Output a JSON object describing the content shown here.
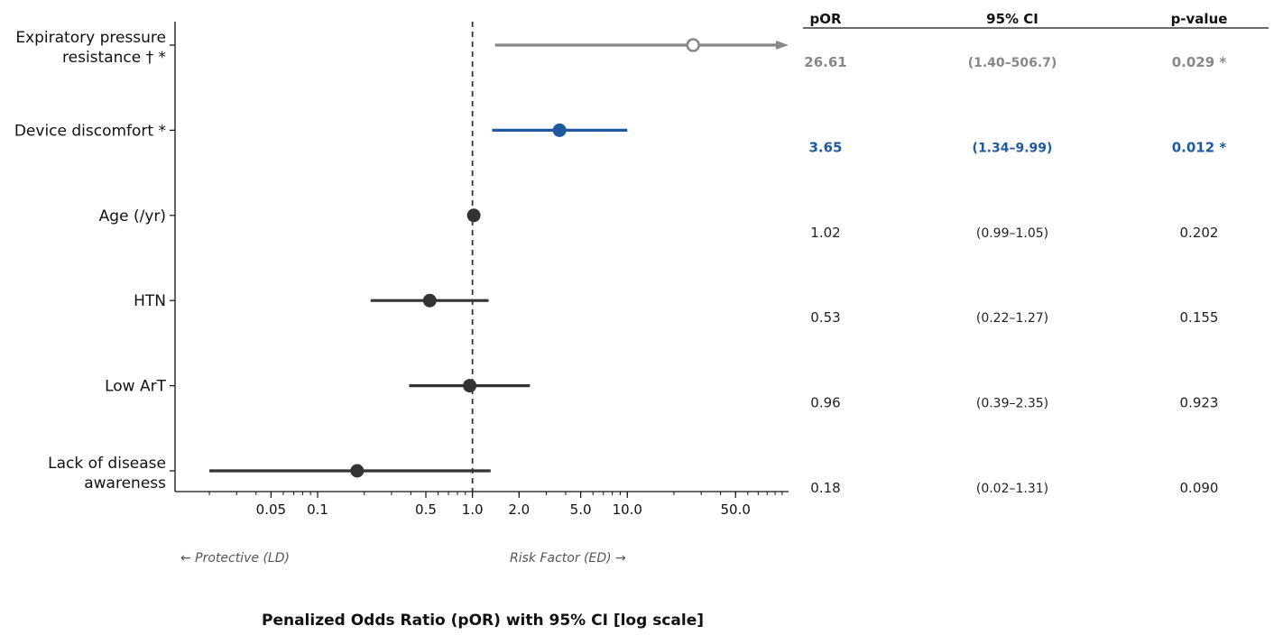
{
  "chart_data": {
    "type": "scatter",
    "subtype": "forest-plot",
    "xlabel": "Penalized Odds Ratio (pOR) with 95% CI  [log scale]",
    "x_scale": "log",
    "xlim": [
      0.012,
      110
    ],
    "x_ticks": [
      {
        "value": 0.05,
        "label": "0.05"
      },
      {
        "value": 0.1,
        "label": "0.1"
      },
      {
        "value": 0.5,
        "label": "0.5"
      },
      {
        "value": 1.0,
        "label": "1.0"
      },
      {
        "value": 2.0,
        "label": "2.0"
      },
      {
        "value": 5.0,
        "label": "5.0"
      },
      {
        "value": 10.0,
        "label": "10.0"
      },
      {
        "value": 50.0,
        "label": "50.0"
      }
    ],
    "reference_line": 1.0,
    "direction_labels": {
      "left": "← Protective (LD)",
      "right": "Risk Factor (ED) →"
    },
    "grid": false,
    "colors": {
      "highlight_gray": "#888888",
      "highlight_blue": "#1f5aa0",
      "default": "#333333"
    },
    "columns": {
      "por": "pOR",
      "ci": "95% CI",
      "p": "p-value"
    },
    "rows": [
      {
        "label": [
          "Expiratory pressure",
          "resistance † *"
        ],
        "por": 26.61,
        "lo": 1.4,
        "hi": 506.7,
        "por_text": "26.61",
        "ci_text": "(1.40–506.7)",
        "p_text": "0.029 *",
        "style": "gray",
        "marker": "open",
        "truncated": true
      },
      {
        "label": [
          "Device discomfort *"
        ],
        "por": 3.65,
        "lo": 1.34,
        "hi": 9.99,
        "por_text": "3.65",
        "ci_text": "(1.34–9.99)",
        "p_text": "0.012 *",
        "style": "blue",
        "marker": "filled",
        "truncated": false
      },
      {
        "label": [
          "Age (/yr)"
        ],
        "por": 1.02,
        "lo": 0.99,
        "hi": 1.05,
        "por_text": "1.02",
        "ci_text": "(0.99–1.05)",
        "p_text": "0.202",
        "style": "default",
        "marker": "filled",
        "truncated": false
      },
      {
        "label": [
          "HTN"
        ],
        "por": 0.53,
        "lo": 0.22,
        "hi": 1.27,
        "por_text": "0.53",
        "ci_text": "(0.22–1.27)",
        "p_text": "0.155",
        "style": "default",
        "marker": "filled",
        "truncated": false
      },
      {
        "label": [
          "Low ArT"
        ],
        "por": 0.96,
        "lo": 0.39,
        "hi": 2.35,
        "por_text": "0.96",
        "ci_text": "(0.39–2.35)",
        "p_text": "0.923",
        "style": "default",
        "marker": "filled",
        "truncated": false
      },
      {
        "label": [
          "Lack of disease",
          "awareness"
        ],
        "por": 0.18,
        "lo": 0.02,
        "hi": 1.31,
        "por_text": "0.18",
        "ci_text": "(0.02–1.31)",
        "p_text": "0.090",
        "style": "default",
        "marker": "filled",
        "truncated": false
      }
    ]
  }
}
